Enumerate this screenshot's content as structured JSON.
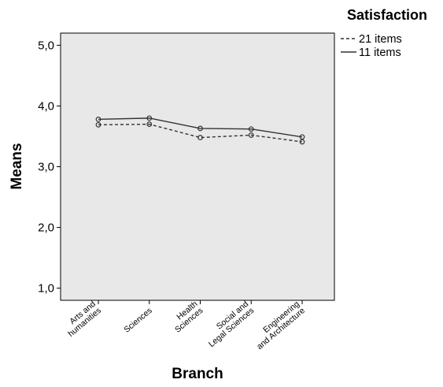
{
  "chart_data": {
    "type": "line",
    "title": "",
    "xlabel": "Branch",
    "ylabel": "Means",
    "ylim": [
      0.8,
      5.2
    ],
    "yticks": [
      1.0,
      2.0,
      3.0,
      4.0,
      5.0
    ],
    "ytick_labels": [
      "1,0",
      "2,0",
      "3,0",
      "4,0",
      "5,0"
    ],
    "categories": [
      [
        "Arts and",
        "humanities"
      ],
      [
        "Sciences"
      ],
      [
        "Health",
        "Sciences"
      ],
      [
        "Social and",
        "Legal Sciences"
      ],
      [
        "Engineering",
        "and Architecture"
      ]
    ],
    "legend": {
      "title": "Satisfaction",
      "placement": "top-right"
    },
    "series": [
      {
        "name": "21 items",
        "style": "dashed",
        "values": [
          3.69,
          3.7,
          3.48,
          3.52,
          3.41
        ]
      },
      {
        "name": "11 items",
        "style": "solid",
        "values": [
          3.78,
          3.8,
          3.63,
          3.62,
          3.49
        ]
      }
    ],
    "colors": {
      "plot_background": "#e8e8e8",
      "line": "#333333"
    }
  }
}
